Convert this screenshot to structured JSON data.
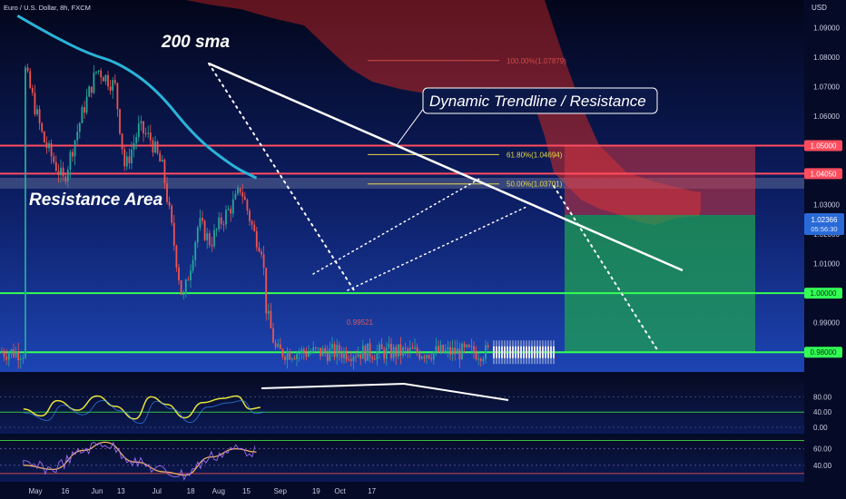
{
  "header": {
    "symbol_title": "Euro / U.S. Dollar, 8h, FXCM",
    "currency": "USD"
  },
  "colors": {
    "background_top": "#05081c",
    "background_bottom": "#1a3ea8",
    "sma": "#2ab4d8",
    "resistance_line": "#ff4d5e",
    "support_line": "#33ff55",
    "cloud": "#b3262c",
    "candle_up": "#26a69a",
    "candle_down": "#ef5350",
    "projection": "#e6e6f0",
    "oscillator_main": "#e7e43a",
    "oscillator_signal": "#3a8cff",
    "rsi_line": "#9b6cf0",
    "rsi_signal": "#f0b060"
  },
  "chart_data": [
    {
      "type": "line",
      "title": "Euro / U.S. Dollar, 8h, FXCM",
      "ylabel": "USD",
      "ylim": [
        0.977,
        1.093
      ],
      "price_axis_ticks": [
        "1.09000",
        "1.08000",
        "1.07000",
        "1.06000",
        "1.05000",
        "1.04000",
        "1.03000",
        "1.02000",
        "1.01000",
        "1.00000",
        "0.99000",
        "0.98000"
      ],
      "time_axis_ticks": [
        "May",
        "16",
        "Jun",
        "13",
        "Jul",
        "18",
        "Aug",
        "15",
        "Sep",
        "19",
        "Oct",
        "17"
      ],
      "price_path": {
        "x": [
          "Apr 25",
          "May 5",
          "May 15",
          "May 25",
          "Jun 1",
          "Jun 10",
          "Jun 15",
          "Jun 22",
          "Jun 28",
          "Jul 4",
          "Jul 14",
          "Jul 18",
          "Jul 22",
          "Jul 28",
          "Aug 2",
          "Aug 10",
          "Aug 12",
          "Aug 19",
          "Aug 23",
          "Aug 25",
          "Aug 30"
        ],
        "y": [
          1.078,
          1.052,
          1.038,
          1.062,
          1.076,
          1.07,
          1.042,
          1.056,
          1.052,
          1.042,
          0.997,
          1.01,
          1.024,
          1.017,
          1.024,
          1.032,
          1.036,
          1.02,
          1.015,
          0.994,
          0.98
        ]
      },
      "series": [
        {
          "name": "200 sma",
          "x": [
            "Apr 22",
            "May 10",
            "May 28",
            "Jun 12",
            "Jul 1",
            "Jul 20",
            "Aug 8",
            "Aug 20"
          ],
          "y": [
            1.094,
            1.087,
            1.081,
            1.078,
            1.069,
            1.053,
            1.043,
            1.039
          ]
        }
      ],
      "horizontal_levels": [
        {
          "price": "1.05000",
          "value": 1.05,
          "color": "red"
        },
        {
          "price": "1.04050",
          "value": 1.0405,
          "color": "red"
        },
        {
          "price": "1.00000",
          "value": 1.0,
          "color": "green"
        },
        {
          "price": "0.98000",
          "value": 0.98,
          "color": "green"
        }
      ],
      "current_price": {
        "value": "1.02366",
        "timer": "05:56:30"
      },
      "fibonacci": [
        {
          "label": "100.00%(1.07879)",
          "value": 1.07879
        },
        {
          "label": "61.80%(1.04694)",
          "value": 1.04694
        },
        {
          "label": "50.00%(1.03701)",
          "value": 1.03701
        }
      ],
      "low_label": "0.99521",
      "annotations": {
        "sma_label": "200 sma",
        "trendline_label": "Dynamic Trendline / Resistance",
        "area_label": "Resistance Area"
      },
      "trade_zone": {
        "entry": 1.0265,
        "stop": 1.05,
        "target": 0.98
      }
    },
    {
      "type": "line",
      "title": "",
      "ylim": [
        0,
        100
      ],
      "axis_ticks": [
        "80.00",
        "40.00",
        "0.00"
      ],
      "series": [
        {
          "x": [
            "Apr 25",
            "May 4",
            "May 12",
            "May 22",
            "Jun 1",
            "Jun 10",
            "Jun 20",
            "Jun 28",
            "Jul 6",
            "Jul 15",
            "Jul 24",
            "Aug 3",
            "Aug 10",
            "Aug 17",
            "Aug 22"
          ],
          "y": [
            48,
            30,
            70,
            45,
            82,
            55,
            22,
            80,
            60,
            25,
            65,
            76,
            82,
            48,
            52
          ]
        }
      ]
    },
    {
      "type": "line",
      "title": "",
      "ylim": [
        20,
        75
      ],
      "axis_ticks": [
        "60.00",
        "40.00"
      ],
      "series": [
        {
          "x": [
            "Apr 25",
            "May 10",
            "May 25",
            "Jun 5",
            "Jun 20",
            "Jul 5",
            "Jul 15",
            "Jul 28",
            "Aug 10",
            "Aug 20"
          ],
          "y": [
            40,
            35,
            58,
            68,
            44,
            32,
            28,
            50,
            60,
            56
          ]
        }
      ]
    }
  ]
}
